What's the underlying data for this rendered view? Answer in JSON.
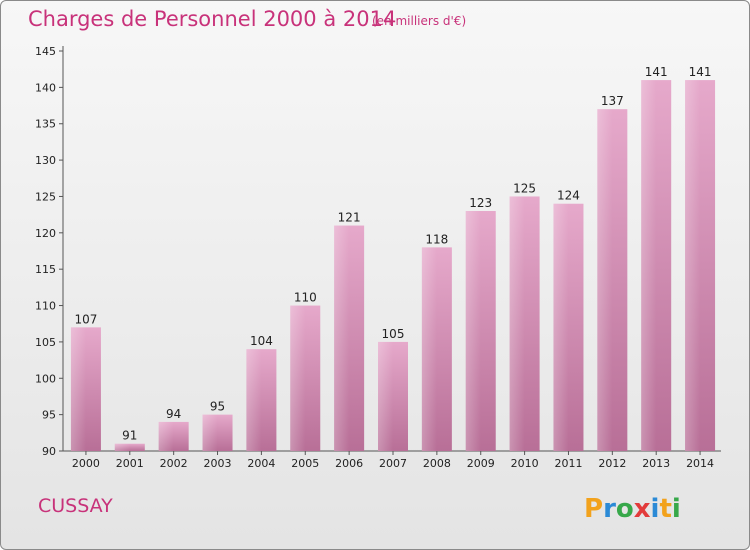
{
  "chart_data": {
    "type": "bar",
    "title": "Charges de Personnel 2000 à 2014",
    "subtitle": "(en milliers d'€)",
    "categories": [
      "2000",
      "2001",
      "2002",
      "2003",
      "2004",
      "2005",
      "2006",
      "2007",
      "2008",
      "2009",
      "2010",
      "2011",
      "2012",
      "2013",
      "2014"
    ],
    "values": [
      107,
      91,
      94,
      95,
      104,
      110,
      121,
      105,
      118,
      123,
      125,
      124,
      137,
      141,
      141
    ],
    "data_labels": [
      "107",
      "91",
      "94",
      "95",
      "104",
      "110",
      "121",
      "105",
      "118",
      "123",
      "125",
      "124",
      "137",
      "141",
      "141"
    ],
    "yticks": [
      "90",
      "95",
      "100",
      "105",
      "110",
      "115",
      "120",
      "125",
      "130",
      "135",
      "140",
      "145"
    ],
    "ylim": [
      90,
      145
    ],
    "grid": false,
    "bar_color": "#d98cb6"
  },
  "place_name": "CUSSAY",
  "logo": {
    "text": "Proxiti",
    "letters": [
      "P",
      "r",
      "o",
      "x",
      "i",
      "t",
      "i"
    ]
  }
}
